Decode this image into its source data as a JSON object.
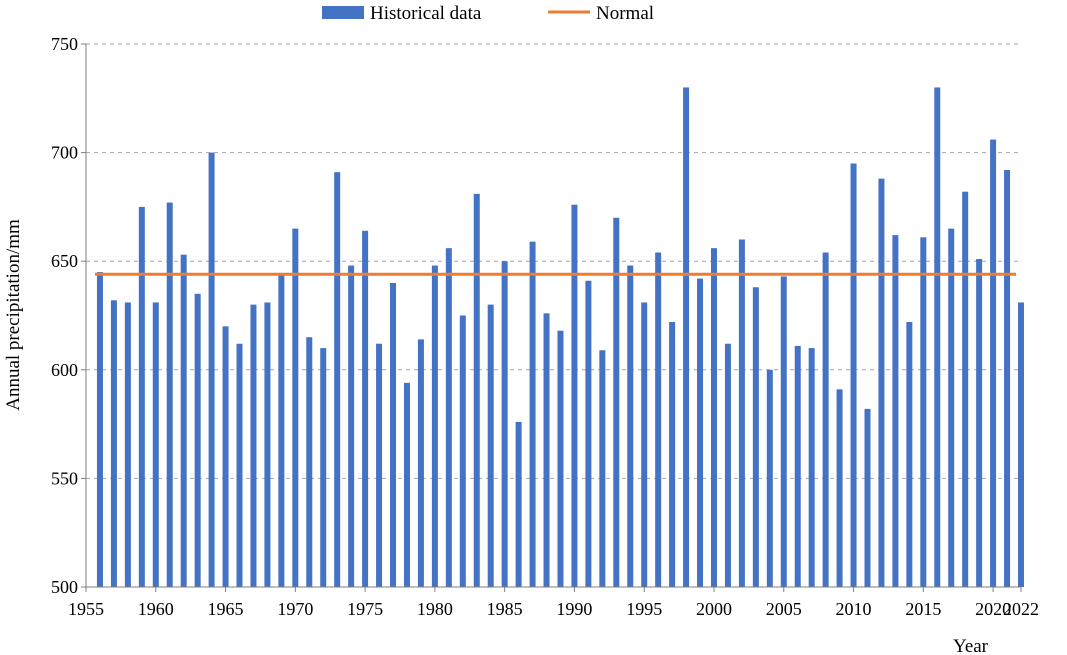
{
  "chart_data": {
    "type": "bar",
    "title": "",
    "xlabel": "Year",
    "ylabel": "Annual precipitation/mm",
    "ylim": [
      500,
      750
    ],
    "xlim": [
      1955,
      2022
    ],
    "yticks": [
      500,
      550,
      600,
      650,
      700,
      750
    ],
    "xticks": [
      1955,
      1960,
      1965,
      1970,
      1975,
      1980,
      1985,
      1990,
      1995,
      2000,
      2005,
      2010,
      2015,
      2020,
      2022
    ],
    "grid": "horizontal dashed",
    "legend_position": "top-center",
    "x": [
      1956,
      1957,
      1958,
      1959,
      1960,
      1961,
      1962,
      1963,
      1964,
      1965,
      1966,
      1967,
      1968,
      1969,
      1970,
      1971,
      1972,
      1973,
      1974,
      1975,
      1976,
      1977,
      1978,
      1979,
      1980,
      1981,
      1982,
      1983,
      1984,
      1985,
      1986,
      1987,
      1988,
      1989,
      1990,
      1991,
      1992,
      1993,
      1994,
      1995,
      1996,
      1997,
      1998,
      1999,
      2000,
      2001,
      2002,
      2003,
      2004,
      2005,
      2006,
      2007,
      2008,
      2009,
      2010,
      2011,
      2012,
      2013,
      2014,
      2015,
      2016,
      2017,
      2018,
      2019,
      2020,
      2021,
      2022
    ],
    "series": [
      {
        "name": "Historical data",
        "kind": "bar",
        "color": "#4472c4",
        "values": [
          645,
          632,
          631,
          675,
          631,
          677,
          653,
          635,
          700,
          620,
          612,
          630,
          631,
          644,
          665,
          615,
          610,
          691,
          648,
          664,
          612,
          640,
          594,
          614,
          648,
          656,
          625,
          681,
          630,
          650,
          576,
          659,
          626,
          618,
          676,
          641,
          609,
          670,
          648,
          631,
          654,
          622,
          730,
          642,
          656,
          612,
          660,
          638,
          600,
          643,
          611,
          610,
          654,
          591,
          695,
          582,
          688,
          662,
          622,
          661,
          730,
          665,
          682,
          651,
          706,
          692,
          631
        ]
      },
      {
        "name": "Normal",
        "kind": "line",
        "color": "#ed7d31",
        "value": 644
      }
    ]
  }
}
